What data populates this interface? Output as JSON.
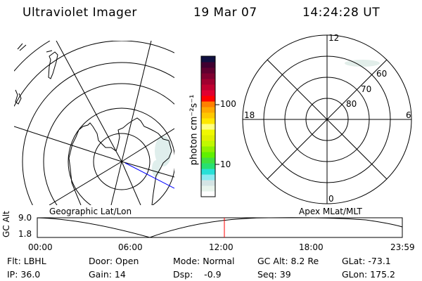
{
  "header": {
    "instrument": "Ultraviolet Imager",
    "date": "19 Mar 07",
    "time": "14:24:28 UT"
  },
  "colorbar": {
    "unit_label": "photon cm⁻²s⁻¹",
    "ticks": [
      "100",
      "10"
    ],
    "colors": [
      "#ffffff",
      "#e8f4ec",
      "#d4e4e4",
      "#8ceaf2",
      "#28e0d8",
      "#28e070",
      "#40e040",
      "#60f000",
      "#90f000",
      "#c0f800",
      "#e0f000",
      "#f0f800",
      "#ffff80",
      "#ffe800",
      "#ffc800",
      "#ffa800",
      "#ff8000",
      "#ff0000",
      "#e00030",
      "#c00030",
      "#a00030",
      "#800030",
      "#600030",
      "#400030",
      "#101040"
    ]
  },
  "left_map": {
    "label": "Geographic Lat/Lon",
    "pass_track_color": "#0000ff"
  },
  "right_map": {
    "label": "Apex MLat/MLT",
    "mlt_labels": {
      "top": "12",
      "left": "18",
      "right": "6",
      "bottom": "0"
    },
    "lat_labels": [
      "60",
      "70",
      "80"
    ]
  },
  "timeline": {
    "ylabel": "GC Alt",
    "yticks": [
      "9.0",
      "1.8"
    ],
    "xticks": [
      "00:00",
      "06:00",
      "12:00",
      "18:00",
      "23:59"
    ],
    "current_time_color": "#ff0000"
  },
  "info": {
    "filter": "Flt: LBHL",
    "ip": "IP: 36.0",
    "door": "Door: Open",
    "gain": "Gain: 14",
    "mode": "Mode: Normal",
    "dsp": "Dsp:    -0.9",
    "gc_alt": "GC Alt: 8.2 Re",
    "seq": "Seq: 39",
    "glat": "GLat: -73.1",
    "glon": "GLon: 175.2"
  }
}
